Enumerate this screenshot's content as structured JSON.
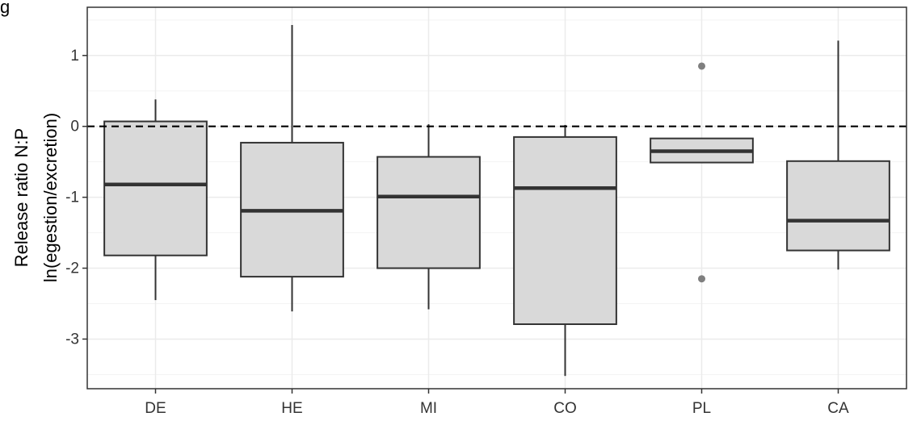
{
  "panel_label": "g",
  "chart_data": {
    "type": "boxplot",
    "ylabel": "Release ratio N:P",
    "ylabel_sub": "ln(egestion/excretion)",
    "xlabel": "",
    "ylim": [
      -3.7,
      1.68
    ],
    "yticks": [
      1,
      0,
      -1,
      -2,
      -3
    ],
    "ytick_labels": [
      "1",
      "0",
      "-1",
      "-2",
      "-3"
    ],
    "grid": true,
    "reference_line": {
      "y": 0,
      "style": "dashed"
    },
    "categories": [
      "DE",
      "HE",
      "MI",
      "CO",
      "PL",
      "CA"
    ],
    "boxes": [
      {
        "category": "DE",
        "whisker_low": -2.45,
        "q1": -1.82,
        "median": -0.82,
        "q3": 0.07,
        "whisker_high": 0.38,
        "outliers": []
      },
      {
        "category": "HE",
        "whisker_low": -2.61,
        "q1": -2.12,
        "median": -1.19,
        "q3": -0.23,
        "whisker_high": 1.43,
        "outliers": []
      },
      {
        "category": "MI",
        "whisker_low": -2.58,
        "q1": -2.0,
        "median": -0.99,
        "q3": -0.43,
        "whisker_high": 0.03,
        "outliers": []
      },
      {
        "category": "CO",
        "whisker_low": -3.52,
        "q1": -2.79,
        "median": -0.87,
        "q3": -0.15,
        "whisker_high": 0.02,
        "outliers": []
      },
      {
        "category": "PL",
        "whisker_low": -0.51,
        "q1": -0.51,
        "median": -0.35,
        "q3": -0.17,
        "whisker_high": -0.17,
        "outliers": [
          0.85,
          -2.15
        ]
      },
      {
        "category": "CA",
        "whisker_low": -2.02,
        "q1": -1.75,
        "median": -1.33,
        "q3": -0.49,
        "whisker_high": 1.21,
        "outliers": []
      }
    ],
    "colors": {
      "box_fill": "#d9d9d9",
      "box_stroke": "#333333",
      "outlier": "#7f7f7f",
      "grid": "#ebebeb",
      "reference": "#000000"
    }
  }
}
